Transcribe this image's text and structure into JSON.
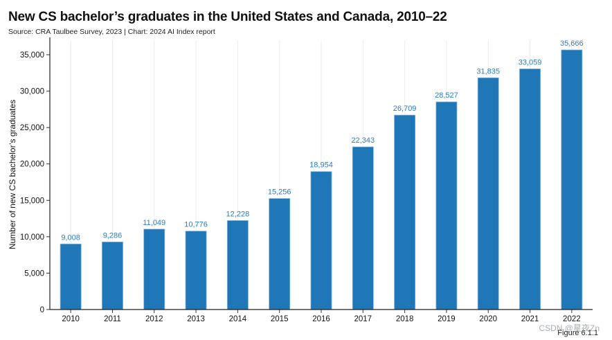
{
  "page": {
    "title": "New CS bachelor’s graduates in the United States and Canada, 2010–22",
    "subtitle": "Source: CRA Taulbee Survey, 2023 | Chart: 2024 AI Index report",
    "figure_label": "Figure 6.1.1",
    "watermark": "CSDN @星夜Zn"
  },
  "chart_data": {
    "type": "bar",
    "title": "New CS bachelor’s graduates in the United States and Canada, 2010–22",
    "xlabel": "",
    "ylabel": "Number of new CS bachelor’s graduates",
    "ylim": [
      0,
      37000
    ],
    "yticks": [
      0,
      5000,
      10000,
      15000,
      20000,
      25000,
      30000,
      35000
    ],
    "ytick_labels": [
      "0",
      "5,000",
      "10,000",
      "15,000",
      "20,000",
      "25,000",
      "30,000",
      "35,000"
    ],
    "grid": "vertical",
    "bar_color": "#1f77b8",
    "label_color": "#2b7cbf",
    "categories": [
      "2010",
      "2011",
      "2012",
      "2013",
      "2014",
      "2015",
      "2016",
      "2017",
      "2018",
      "2019",
      "2020",
      "2021",
      "2022"
    ],
    "values": [
      9008,
      9286,
      11049,
      10776,
      12228,
      15256,
      18954,
      22343,
      26709,
      28527,
      31835,
      33059,
      35666
    ],
    "value_labels": [
      "9,008",
      "9,286",
      "11,049",
      "10,776",
      "12,228",
      "15,256",
      "18,954",
      "22,343",
      "26,709",
      "28,527",
      "31,835",
      "33,059",
      "35,666"
    ]
  }
}
